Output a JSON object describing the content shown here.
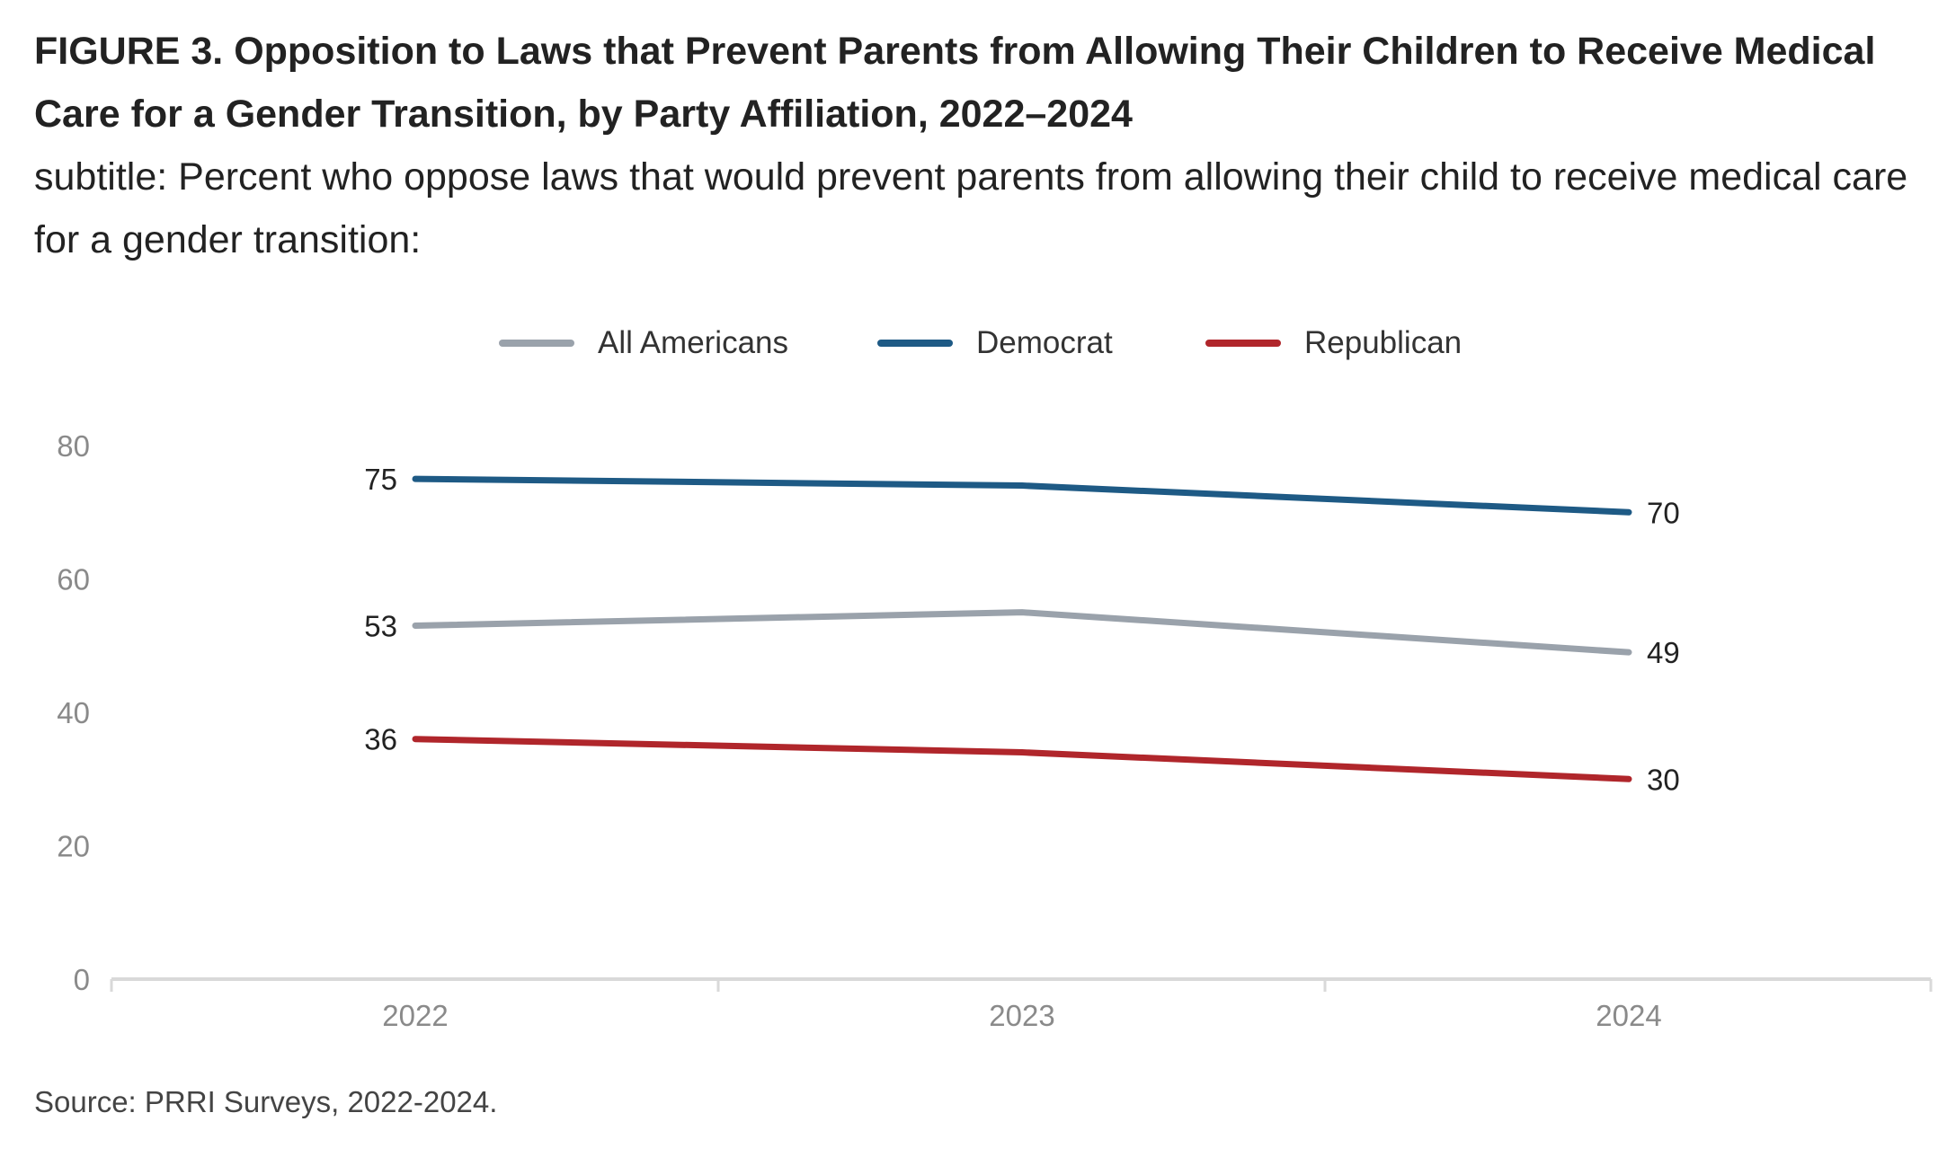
{
  "figure": {
    "title": "FIGURE 3.  Opposition to Laws that Prevent Parents from Allowing Their Children to Receive Medical Care for a Gender Transition, by Party Affiliation, 2022–2024",
    "subtitle": "subtitle: Percent who oppose laws that would prevent parents from allowing their child to receive medical care for a gender transition:",
    "source": "Source: PRRI Surveys, 2022-2024."
  },
  "chart_data": {
    "type": "line",
    "title": "FIGURE 3.  Opposition to Laws that Prevent Parents from Allowing Their Children to Receive Medical Care for a Gender Transition, by Party Affiliation, 2022–2024",
    "subtitle": "subtitle: Percent who oppose laws that would prevent parents from allowing their child to receive medical care for a gender transition:",
    "x": [
      "2022",
      "2023",
      "2024"
    ],
    "ylim": [
      0,
      80
    ],
    "yticks": [
      0,
      20,
      40,
      60,
      80
    ],
    "grid": false,
    "legend_position": "top",
    "xlabel": "",
    "ylabel": "",
    "series": [
      {
        "name": "All Americans",
        "color": "#9aa2ab",
        "values": [
          53,
          55,
          49
        ],
        "labels": [
          "53",
          "",
          "49"
        ]
      },
      {
        "name": "Democrat",
        "color": "#1e5a85",
        "values": [
          75,
          74,
          70
        ],
        "labels": [
          "75",
          "",
          "70"
        ]
      },
      {
        "name": "Republican",
        "color": "#b0262b",
        "values": [
          36,
          34,
          30
        ],
        "labels": [
          "36",
          "",
          "30"
        ]
      }
    ]
  }
}
